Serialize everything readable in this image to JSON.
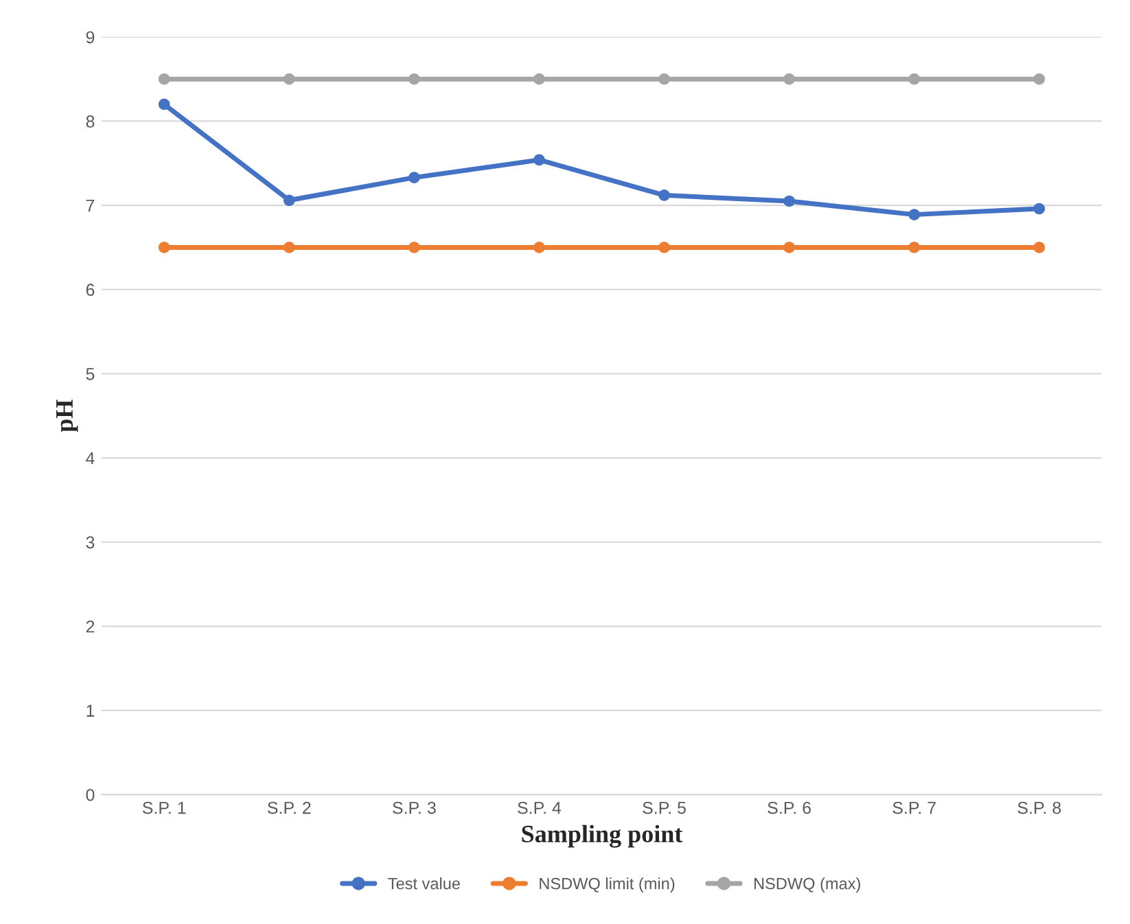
{
  "chart_data": {
    "type": "line",
    "xlabel": "Sampling point",
    "ylabel": "pH",
    "categories": [
      "S.P. 1",
      "S.P. 2",
      "S.P. 3",
      "S.P. 4",
      "S.P. 5",
      "S.P. 6",
      "S.P. 7",
      "S.P. 8"
    ],
    "series": [
      {
        "name": "Test value",
        "color": "#4472c4",
        "values": [
          8.2,
          7.06,
          7.33,
          7.54,
          7.12,
          7.05,
          6.89,
          6.96
        ]
      },
      {
        "name": "NSDWQ limit (min)",
        "color": "#ed7d31",
        "values": [
          6.5,
          6.5,
          6.5,
          6.5,
          6.5,
          6.5,
          6.5,
          6.5
        ]
      },
      {
        "name": "NSDWQ (max)",
        "color": "#a5a5a5",
        "values": [
          8.5,
          8.5,
          8.5,
          8.5,
          8.5,
          8.5,
          8.5,
          8.5
        ]
      }
    ],
    "ylim": [
      0,
      9
    ],
    "yticks": [
      0,
      1,
      2,
      3,
      4,
      5,
      6,
      7,
      8,
      9
    ],
    "grid": "y",
    "legend": "bottom",
    "marker": "circle",
    "line_style": "solid"
  }
}
